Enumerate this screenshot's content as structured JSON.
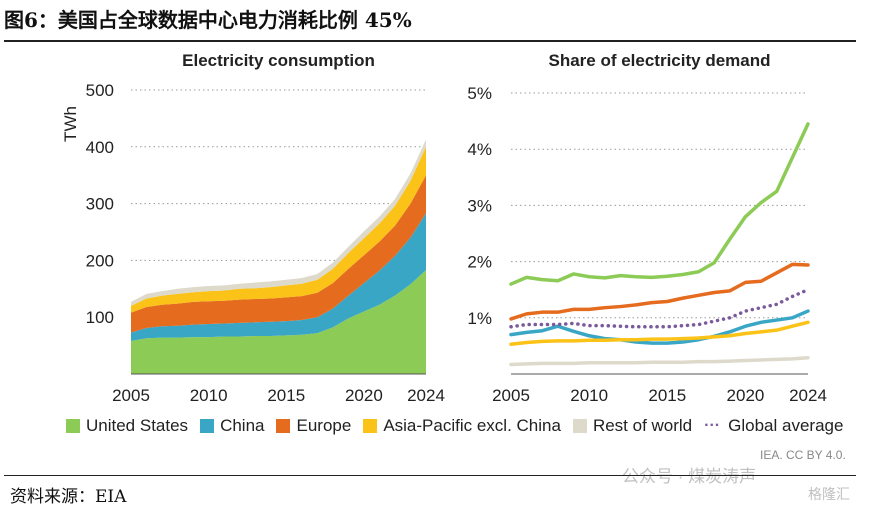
{
  "figure": {
    "title": "图6：美国占全球数据中心电力消耗比例 45%",
    "source": "资料来源：EIA",
    "credit": "IEA. CC BY 4.0.",
    "watermark": "公众号 · 煤炭涛声",
    "watermark2": "格隆汇"
  },
  "legend": [
    {
      "name": "United States",
      "color": "#8dcb57"
    },
    {
      "name": "China",
      "color": "#3aa6c6"
    },
    {
      "name": "Europe",
      "color": "#e56b1f"
    },
    {
      "name": "Asia-Pacific excl. China",
      "color": "#fbc218"
    },
    {
      "name": "Rest of world",
      "color": "#dedacb"
    },
    {
      "name": "Global average",
      "color": "#7a5a9a",
      "style": "dotted"
    }
  ],
  "chart_data": [
    {
      "type": "area",
      "stacked": true,
      "title": "Electricity consumption",
      "ylabel": "TWh",
      "xlabel": "",
      "x": [
        2005,
        2006,
        2007,
        2008,
        2009,
        2010,
        2011,
        2012,
        2013,
        2014,
        2015,
        2016,
        2017,
        2018,
        2019,
        2020,
        2021,
        2022,
        2023,
        2024
      ],
      "ylim": [
        0,
        500
      ],
      "yticks": [
        100,
        200,
        300,
        400,
        500
      ],
      "xticks": [
        2005,
        2010,
        2015,
        2020,
        2024
      ],
      "grid": "horizontal dotted",
      "series": [
        {
          "name": "United States",
          "color": "#8dcb57",
          "values": [
            58,
            63,
            64,
            64,
            65,
            65,
            66,
            66,
            67,
            67,
            68,
            69,
            72,
            82,
            98,
            110,
            122,
            138,
            158,
            183
          ]
        },
        {
          "name": "China",
          "color": "#3aa6c6",
          "values": [
            15,
            18,
            20,
            21,
            22,
            23,
            23,
            24,
            24,
            25,
            25,
            26,
            28,
            33,
            40,
            50,
            60,
            70,
            82,
            100
          ]
        },
        {
          "name": "Europe",
          "color": "#e56b1f",
          "values": [
            35,
            37,
            38,
            39,
            40,
            40,
            40,
            41,
            41,
            41,
            42,
            42,
            43,
            45,
            47,
            49,
            51,
            53,
            60,
            67
          ]
        },
        {
          "name": "Asia-Pacific excl. China",
          "color": "#fbc218",
          "values": [
            12,
            15,
            16,
            17,
            17,
            18,
            18,
            19,
            19,
            20,
            21,
            22,
            23,
            25,
            28,
            30,
            32,
            35,
            40,
            50
          ]
        },
        {
          "name": "Rest of world",
          "color": "#dedacb",
          "values": [
            7,
            8,
            8,
            9,
            9,
            9,
            9,
            9,
            10,
            10,
            10,
            10,
            10,
            11,
            11,
            12,
            12,
            12,
            13,
            13
          ]
        }
      ]
    },
    {
      "type": "line",
      "title": "Share of electricity demand",
      "ylabel": "",
      "xlabel": "",
      "x": [
        2005,
        2006,
        2007,
        2008,
        2009,
        2010,
        2011,
        2012,
        2013,
        2014,
        2015,
        2016,
        2017,
        2018,
        2019,
        2020,
        2021,
        2022,
        2023,
        2024
      ],
      "ylim": [
        0,
        5
      ],
      "yticks": [
        1,
        2,
        3,
        4,
        5
      ],
      "ytick_labels": [
        "1%",
        "2%",
        "3%",
        "4%",
        "5%"
      ],
      "xticks": [
        2005,
        2010,
        2015,
        2020,
        2024
      ],
      "grid": "horizontal dotted",
      "series": [
        {
          "name": "United States",
          "color": "#8dcb57",
          "values": [
            1.6,
            1.72,
            1.68,
            1.66,
            1.78,
            1.73,
            1.71,
            1.75,
            1.73,
            1.72,
            1.74,
            1.77,
            1.82,
            1.98,
            2.4,
            2.8,
            3.05,
            3.25,
            3.85,
            4.45
          ]
        },
        {
          "name": "China",
          "color": "#3aa6c6",
          "values": [
            0.7,
            0.74,
            0.77,
            0.85,
            0.76,
            0.68,
            0.63,
            0.61,
            0.57,
            0.55,
            0.55,
            0.57,
            0.61,
            0.67,
            0.75,
            0.85,
            0.92,
            0.96,
            1.0,
            1.12
          ]
        },
        {
          "name": "Europe",
          "color": "#e56b1f",
          "values": [
            0.98,
            1.07,
            1.1,
            1.1,
            1.15,
            1.15,
            1.18,
            1.2,
            1.23,
            1.27,
            1.29,
            1.35,
            1.4,
            1.45,
            1.48,
            1.63,
            1.65,
            1.8,
            1.95,
            1.94
          ]
        },
        {
          "name": "Asia-Pacific excl. China",
          "color": "#fbc218",
          "values": [
            0.53,
            0.56,
            0.58,
            0.59,
            0.59,
            0.6,
            0.6,
            0.61,
            0.61,
            0.62,
            0.62,
            0.63,
            0.64,
            0.66,
            0.68,
            0.72,
            0.75,
            0.78,
            0.85,
            0.92
          ]
        },
        {
          "name": "Rest of world",
          "color": "#dedacb",
          "values": [
            0.17,
            0.18,
            0.19,
            0.19,
            0.19,
            0.2,
            0.2,
            0.2,
            0.2,
            0.21,
            0.21,
            0.21,
            0.22,
            0.22,
            0.23,
            0.24,
            0.25,
            0.26,
            0.27,
            0.29
          ]
        },
        {
          "name": "Global average",
          "color": "#7a5a9a",
          "style": "dotted",
          "values": [
            0.84,
            0.88,
            0.88,
            0.88,
            0.9,
            0.86,
            0.86,
            0.85,
            0.84,
            0.84,
            0.84,
            0.86,
            0.88,
            0.94,
            1.0,
            1.12,
            1.18,
            1.24,
            1.38,
            1.5
          ]
        }
      ]
    }
  ]
}
